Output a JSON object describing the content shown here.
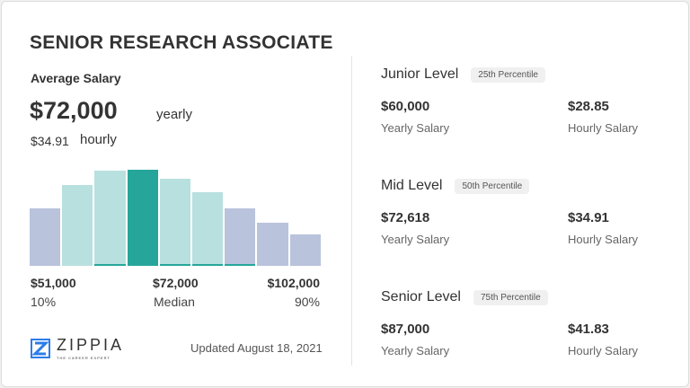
{
  "title": "SENIOR RESEARCH ASSOCIATE",
  "average": {
    "label": "Average Salary",
    "yearly_value": "$72,000",
    "yearly_label": "yearly",
    "hourly_value": "$34.91",
    "hourly_label": "hourly"
  },
  "chart_data": {
    "type": "bar",
    "relative_heights": [
      60,
      84,
      99,
      100,
      91,
      77,
      60,
      45,
      33
    ],
    "bar_colors": [
      "#b9c3dc",
      "#b8e0df",
      "#b8e0df",
      "#26a69a",
      "#b8e0df",
      "#b8e0df",
      "#b9c3dc",
      "#b9c3dc",
      "#b9c3dc"
    ],
    "underlined": [
      false,
      false,
      true,
      false,
      true,
      true,
      true,
      false,
      false
    ],
    "labels": [
      {
        "value": "$51,000",
        "sub": "10%"
      },
      {
        "value": "$72,000",
        "sub": "Median"
      },
      {
        "value": "$102,000",
        "sub": "90%"
      }
    ]
  },
  "footer": {
    "brand": "ZIPPIA",
    "tagline": "THE CAREER EXPERT",
    "updated": "Updated August 18, 2021"
  },
  "levels": [
    {
      "name": "Junior Level",
      "badge": "25th Percentile",
      "yearly": "$60,000",
      "yearly_label": "Yearly Salary",
      "hourly": "$28.85",
      "hourly_label": "Hourly Salary"
    },
    {
      "name": "Mid Level",
      "badge": "50th Percentile",
      "yearly": "$72,618",
      "yearly_label": "Yearly Salary",
      "hourly": "$34.91",
      "hourly_label": "Hourly Salary"
    },
    {
      "name": "Senior Level",
      "badge": "75th Percentile",
      "yearly": "$87,000",
      "yearly_label": "Yearly Salary",
      "hourly": "$41.83",
      "hourly_label": "Hourly Salary"
    }
  ],
  "colors": {
    "accent": "#26a69a",
    "logo": "#2b7de9"
  }
}
